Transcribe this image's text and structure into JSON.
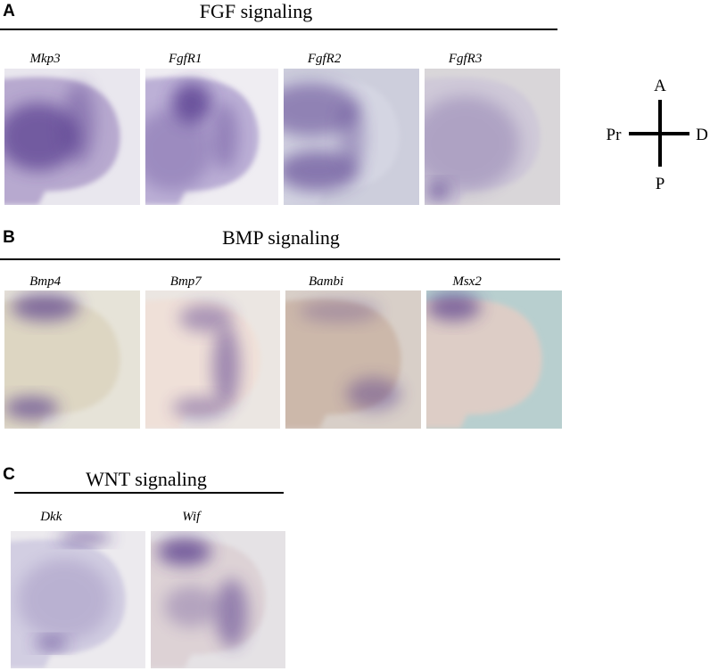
{
  "panels": [
    {
      "label": "A",
      "title": "FGF signaling",
      "genes": [
        "Mkp3",
        "FgfR1",
        "FgfR2",
        "FgfR3"
      ]
    },
    {
      "label": "B",
      "title": "BMP signaling",
      "genes": [
        "Bmp4",
        "Bmp7",
        "Bambi",
        "Msx2"
      ]
    },
    {
      "label": "C",
      "title": "WNT signaling",
      "genes": [
        "Dkk",
        "Wif"
      ]
    }
  ],
  "orientation": {
    "anterior": "A",
    "proximal": "Pr",
    "distal": "D",
    "posterior": "P"
  }
}
